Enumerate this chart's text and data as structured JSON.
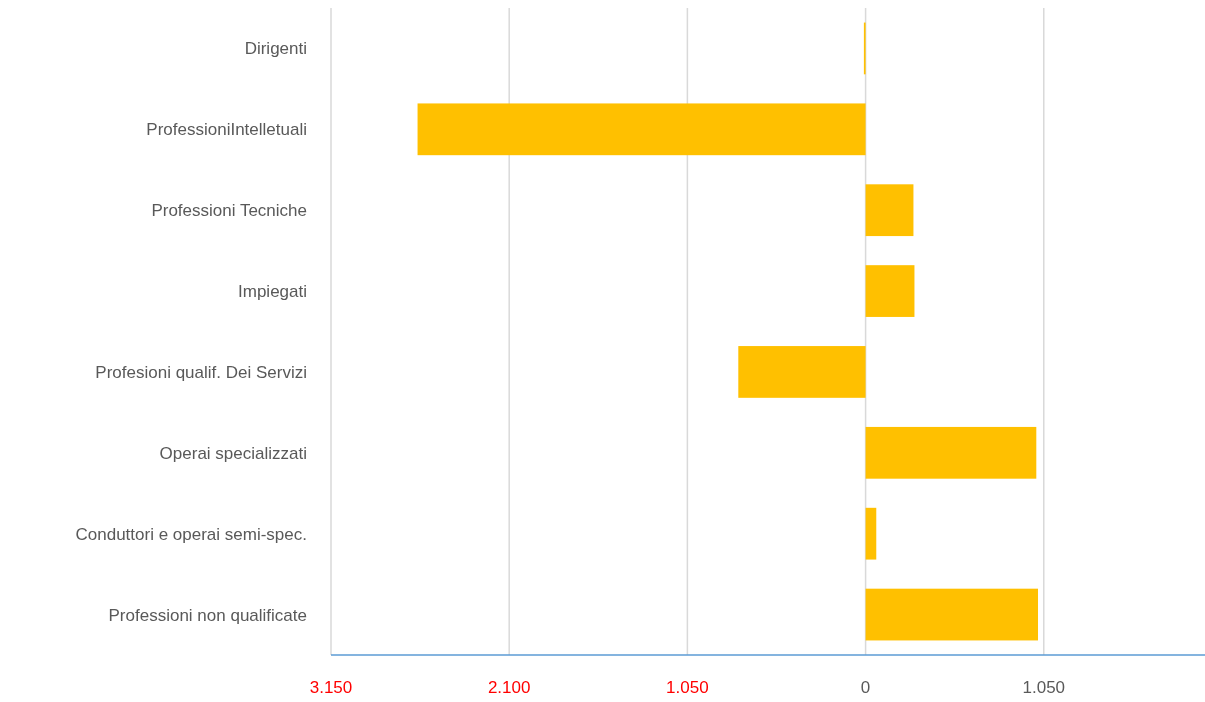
{
  "chart_data": {
    "type": "bar",
    "orientation": "horizontal",
    "categories": [
      "Dirigenti",
      "ProfessioniIntelletuali",
      "Professioni Tecniche",
      "Impiegati",
      "Profesioni qualif. Dei Servizi",
      "Operai specializzati",
      "Conduttori e operai semi-spec.",
      "Professioni non qualificate"
    ],
    "values": [
      -10,
      -2640,
      282,
      288,
      -750,
      1006,
      63,
      1016
    ],
    "color": "#ffc000",
    "xlim": [
      -3150,
      2000
    ],
    "xticks": [
      {
        "value": -3150,
        "label": "3.150"
      },
      {
        "value": -2100,
        "label": "2.100"
      },
      {
        "value": -1050,
        "label": "1.050"
      },
      0,
      {
        "value": 1050,
        "label": "1.050"
      }
    ],
    "grid": "x"
  }
}
